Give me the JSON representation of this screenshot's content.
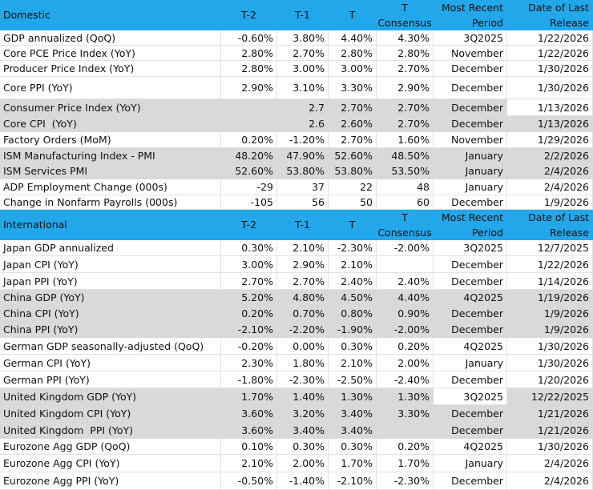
{
  "domestic": {
    "header": [
      "Domestic",
      "T-2",
      "T-1",
      "T",
      "T\nConsensus",
      "Most Recent\nPeriod",
      "Date of Last\nRelease"
    ],
    "rows": [
      [
        "GDP annualized (QoQ)",
        "-0.60%",
        "3.80%",
        "4.40%",
        "4.30%",
        "3Q2025",
        "1/22/2026"
      ],
      [
        "Core PCE Price Index (YoY)",
        "2.80%",
        "2.70%",
        "2.80%",
        "2.80%",
        "November",
        "1/22/2026"
      ],
      [
        "Producer Price Index (YoY)",
        "2.80%",
        "3.00%",
        "3.00%",
        "2.70%",
        "December",
        "1/30/2026"
      ],
      [
        "Core PPI (YoY)",
        "2.90%",
        "3.10%",
        "3.30%",
        "2.90%",
        "December",
        "1/30/2026"
      ],
      [
        "Consumer Price Index (YoY)",
        null,
        "2.7",
        "2.70%",
        "2.70%",
        "December",
        "1/13/2026"
      ],
      [
        "Core CPI  (YoY)",
        null,
        "2.6",
        "2.60%",
        "2.70%",
        "December",
        "1/13/2026"
      ],
      [
        "Factory Orders (MoM)",
        "0.20%",
        "-1.20%",
        "2.70%",
        "1.60%",
        "November",
        "1/29/2026"
      ],
      [
        "ISM Manufacturing Index - PMI",
        "48.20%",
        "47.90%",
        "52.60%",
        "48.50%",
        "January",
        "2/2/2026"
      ],
      [
        "ISM Services PMI",
        "52.60%",
        "53.80%",
        "53.80%",
        "53.50%",
        "January",
        "2/4/2026"
      ],
      [
        "ADP Employment Change (000s)",
        "-29",
        "37",
        "22",
        "48",
        "January",
        "2/4/2026"
      ],
      [
        "Change in Nonfarm Payrolls (000s)",
        "-105",
        "56",
        "50",
        "60",
        "December",
        "1/9/2026"
      ]
    ]
  },
  "international": {
    "header": [
      "International",
      "T-2",
      "T-1",
      "T",
      "T\nConsensus",
      "Most Recent\nPeriod",
      "Date of Last\nRelease"
    ],
    "rows": [
      [
        "Japan GDP annualized",
        "0.30%",
        "2.10%",
        "-2.30%",
        "-2.00%",
        "3Q2025",
        "12/7/2025"
      ],
      [
        "Japan CPI (YoY)",
        "3.00%",
        "2.90%",
        "2.10%",
        null,
        "December",
        "1/22/2026"
      ],
      [
        "Japan PPI (YoY)",
        "2.70%",
        "2.70%",
        "2.40%",
        "2.40%",
        "December",
        "1/14/2026"
      ],
      [
        "China GDP (YoY)",
        "5.20%",
        "4.80%",
        "4.50%",
        "4.40%",
        "4Q2025",
        "1/19/2026"
      ],
      [
        "China CPI (YoY)",
        "0.20%",
        "0.70%",
        "0.80%",
        "0.90%",
        "December",
        "1/9/2026"
      ],
      [
        "China PPI (YoY)",
        "-2.10%",
        "-2.20%",
        "-1.90%",
        "-2.00%",
        "December",
        "1/9/2026"
      ],
      [
        "German GDP seasonally-adjusted (QoQ)",
        "-0.20%",
        "0.00%",
        "0.30%",
        "0.20%",
        "4Q2025",
        "1/30/2026"
      ],
      [
        "German CPI (YoY)",
        "2.30%",
        "1.80%",
        "2.10%",
        "2.00%",
        "January",
        "1/30/2026"
      ],
      [
        "German PPI (YoY)",
        "-1.80%",
        "-2.30%",
        "-2.50%",
        "-2.40%",
        "December",
        "1/20/2026"
      ],
      [
        "United Kingdom GDP (YoY)",
        "1.70%",
        "1.40%",
        "1.30%",
        "1.30%",
        "3Q2025",
        "12/22/2025"
      ],
      [
        "United Kingdom CPI (YoY)",
        "3.60%",
        "3.20%",
        "3.40%",
        "3.30%",
        "December",
        "1/21/2026"
      ],
      [
        "United Kingdom  PPI (YoY)",
        "3.60%",
        "3.40%",
        "3.40%",
        null,
        "December",
        "1/21/2026"
      ],
      [
        "Eurozone Agg GDP (QoQ)",
        "0.10%",
        "0.30%",
        "0.30%",
        "0.20%",
        "4Q2025",
        "1/30/2026"
      ],
      [
        "Eurozone Agg CPI (YoY)",
        "2.10%",
        "2.00%",
        "1.70%",
        "1.70%",
        "January",
        "2/4/2026"
      ],
      [
        "Eurozone Agg PPI (YoY)",
        "-0.50%",
        "-1.40%",
        "-2.10%",
        "-2.30%",
        "December",
        "2/4/2026"
      ]
    ]
  }
}
